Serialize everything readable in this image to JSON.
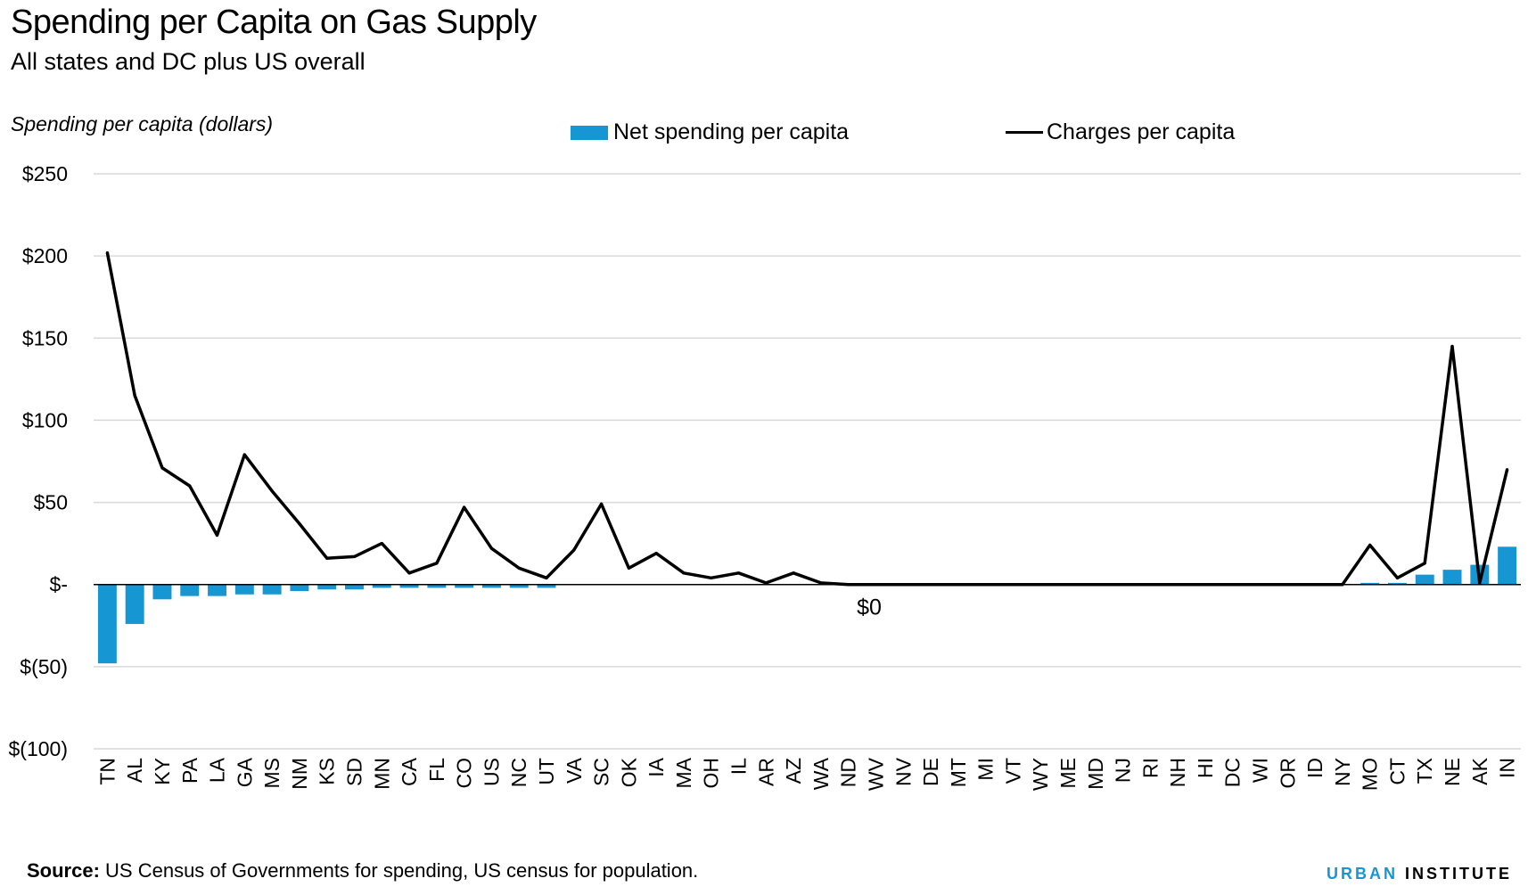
{
  "title": "Spending per Capita on Gas Supply",
  "subtitle": "All states and DC plus US overall",
  "source_label": "Source:",
  "source_text": " US Census of Governments for spending, US census for population.",
  "brand": {
    "part1": "URBAN",
    "part2": "INSTITUTE"
  },
  "colors": {
    "bar": "#1696d2",
    "line": "#000000",
    "grid": "#d9d9d9"
  },
  "chart_data": {
    "type": "bar",
    "ylabel": "Spending per capita (dollars)",
    "ylim": [
      -100,
      250
    ],
    "ytick_values": [
      250,
      200,
      150,
      100,
      50,
      0,
      -50,
      -100
    ],
    "ytick_labels": [
      "$250",
      "$200",
      "$150",
      "$100",
      "$50",
      "$-",
      "$(50)",
      "$(100)"
    ],
    "grid": true,
    "legend_placement": "top",
    "annotation": "$0",
    "categories": [
      "TN",
      "AL",
      "KY",
      "PA",
      "LA",
      "GA",
      "MS",
      "NM",
      "KS",
      "SD",
      "MN",
      "CA",
      "FL",
      "CO",
      "US",
      "NC",
      "UT",
      "VA",
      "SC",
      "OK",
      "IA",
      "MA",
      "OH",
      "IL",
      "AR",
      "AZ",
      "WA",
      "ND",
      "WV",
      "NV",
      "DE",
      "MT",
      "MI",
      "VT",
      "WY",
      "ME",
      "MD",
      "NJ",
      "RI",
      "NH",
      "HI",
      "DC",
      "WI",
      "OR",
      "ID",
      "NY",
      "MO",
      "CT",
      "TX",
      "NE",
      "AK",
      "IN"
    ],
    "series": [
      {
        "name": "Net spending per capita",
        "kind": "bar",
        "values": [
          -48,
          -24,
          -9,
          -7,
          -7,
          -6,
          -6,
          -4,
          -3,
          -3,
          -2,
          -2,
          -2,
          -2,
          -2,
          -2,
          -2,
          0,
          0,
          0,
          0,
          0,
          0,
          0,
          0,
          0,
          0,
          0,
          0,
          0,
          0,
          0,
          0,
          0,
          0,
          0,
          0,
          0,
          0,
          0,
          0,
          0,
          0,
          0,
          0,
          0,
          1,
          1,
          6,
          9,
          12,
          23
        ]
      },
      {
        "name": "Charges per capita",
        "kind": "line",
        "values": [
          202,
          115,
          71,
          60,
          30,
          79,
          57,
          37,
          16,
          17,
          25,
          7,
          13,
          47,
          22,
          10,
          4,
          21,
          49,
          10,
          19,
          7,
          4,
          7,
          1,
          7,
          1,
          0,
          0,
          0,
          0,
          0,
          0,
          0,
          0,
          0,
          0,
          0,
          0,
          0,
          0,
          0,
          0,
          0,
          0,
          0,
          24,
          4,
          13,
          145,
          1,
          70
        ]
      }
    ]
  }
}
